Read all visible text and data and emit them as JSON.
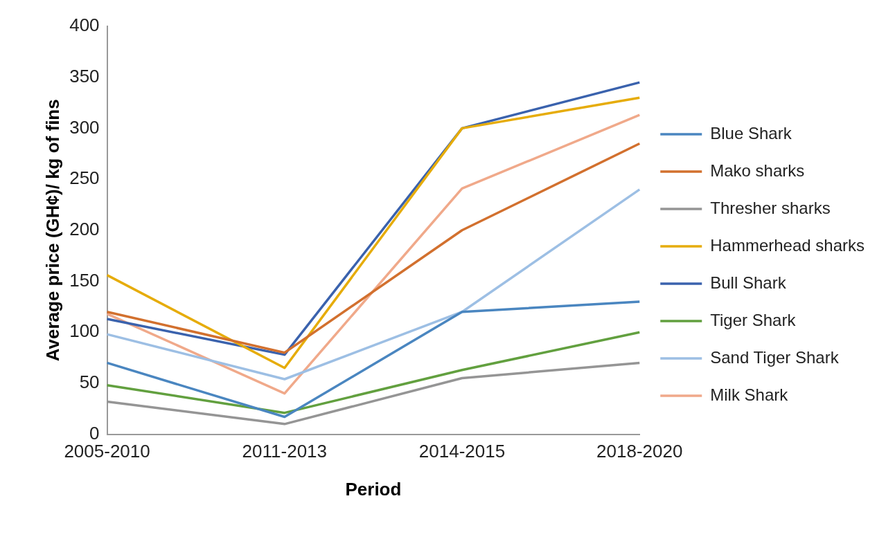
{
  "chart_data": {
    "type": "line",
    "xlabel": "Period",
    "ylabel": "Average price (GH¢)/ kg of fins",
    "categories": [
      "2005-2010",
      "2011-2013",
      "2014-2015",
      "2018-2020"
    ],
    "series": [
      {
        "name": "Blue Shark",
        "color": "#4a86c0",
        "values": [
          70,
          17,
          120,
          130
        ]
      },
      {
        "name": "Mako sharks",
        "color": "#d2702e",
        "values": [
          120,
          80,
          200,
          285
        ]
      },
      {
        "name": "Thresher sharks",
        "color": "#959595",
        "values": [
          32,
          10,
          55,
          70
        ]
      },
      {
        "name": "Hammerhead sharks",
        "color": "#e6ac0a",
        "values": [
          156,
          65,
          300,
          330
        ]
      },
      {
        "name": "Bull Shark",
        "color": "#3a62ad",
        "values": [
          113,
          78,
          300,
          345
        ]
      },
      {
        "name": "Tiger Shark",
        "color": "#62a03f",
        "values": [
          48,
          21,
          63,
          100
        ]
      },
      {
        "name": "Sand Tiger Shark",
        "color": "#9dbfe4",
        "values": [
          98,
          54,
          120,
          240
        ]
      },
      {
        "name": "Milk Shark",
        "color": "#f0a98a",
        "values": [
          118,
          40,
          241,
          313
        ]
      }
    ],
    "ylim": [
      0,
      400
    ],
    "yticks": [
      0,
      50,
      100,
      150,
      200,
      250,
      300,
      350,
      400
    ],
    "grid": false,
    "legend": "right",
    "marker": "none",
    "line_style": "solid"
  }
}
